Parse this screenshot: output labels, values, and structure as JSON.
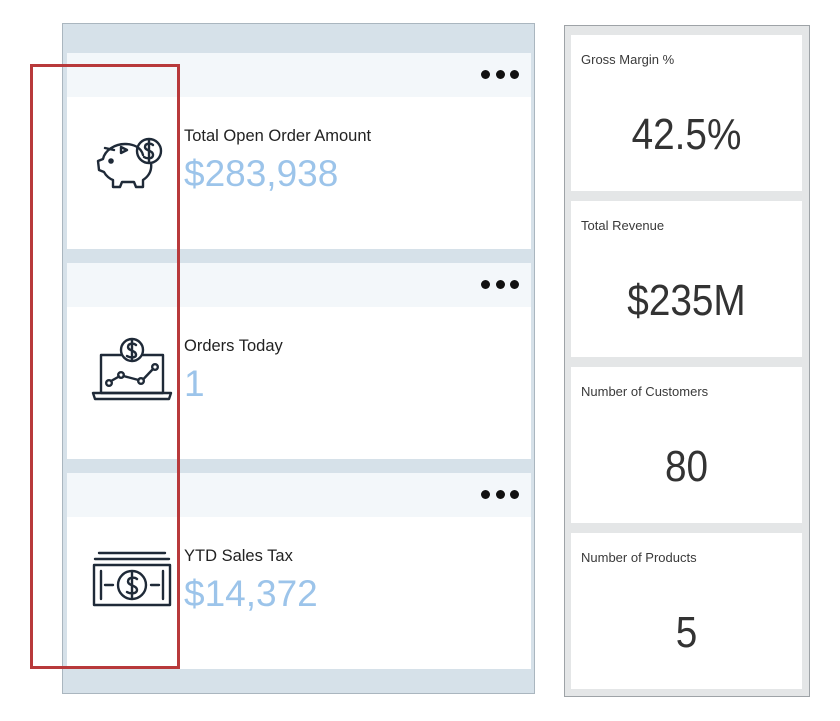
{
  "left_cards": [
    {
      "title": "Total Open Order Amount",
      "value": "$283,938",
      "icon": "piggy-bank-dollar-icon"
    },
    {
      "title": "Orders Today",
      "value": "1",
      "icon": "laptop-chart-dollar-icon"
    },
    {
      "title": "YTD Sales Tax",
      "value": "$14,372",
      "icon": "cash-bill-icon"
    }
  ],
  "right_tiles": [
    {
      "label": "Gross Margin %",
      "value": "42.5%"
    },
    {
      "label": "Total Revenue",
      "value": "$235M"
    },
    {
      "label": "Number of Customers",
      "value": "80"
    },
    {
      "label": "Number of Products",
      "value": "5"
    }
  ],
  "colors": {
    "accent_value": "#9cc4ea",
    "highlight": "#b8393b",
    "panel_bg": "#d6e1e9",
    "card_header": "#f3f7fa"
  }
}
